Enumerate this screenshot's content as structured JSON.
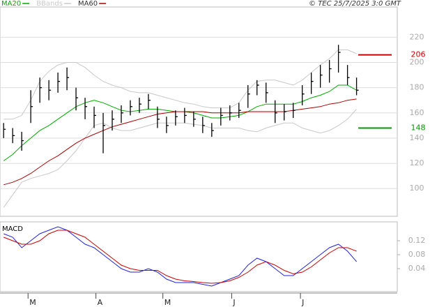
{
  "chart_data": [
    {
      "type": "ohlc",
      "header": "© TEC 25/7/2025 3:0 GMT",
      "high": [
        152,
        148,
        145,
        178,
        188,
        186,
        192,
        196,
        180,
        172,
        165,
        160,
        162,
        166,
        170,
        172,
        175,
        165,
        157,
        162,
        164,
        161,
        157,
        152,
        164,
        166,
        168,
        182,
        186,
        184,
        170,
        167,
        168,
        182,
        192,
        198,
        202,
        214,
        198,
        188
      ],
      "low": [
        140,
        136,
        130,
        152,
        168,
        170,
        176,
        178,
        162,
        155,
        148,
        128,
        146,
        152,
        158,
        160,
        163,
        148,
        144,
        150,
        152,
        149,
        144,
        141,
        150,
        154,
        156,
        164,
        174,
        168,
        152,
        154,
        156,
        166,
        175,
        180,
        184,
        192,
        182,
        174
      ],
      "close": [
        147,
        142,
        138,
        165,
        180,
        178,
        185,
        188,
        172,
        165,
        158,
        150,
        155,
        160,
        165,
        167,
        170,
        155,
        150,
        157,
        158,
        155,
        150,
        146,
        158,
        160,
        162,
        175,
        182,
        176,
        160,
        161,
        162,
        175,
        185,
        190,
        195,
        208,
        188,
        178
      ],
      "series": [
        {
          "name": "MA20",
          "color": "#00aa00",
          "values": [
            122,
            127,
            134,
            140,
            146,
            150,
            155,
            160,
            165,
            168,
            170,
            168,
            165,
            162,
            161,
            162,
            163,
            163,
            162,
            161,
            161,
            160,
            158,
            156,
            156,
            157,
            158,
            161,
            165,
            167,
            167,
            167,
            167,
            169,
            172,
            174,
            177,
            182,
            182,
            178
          ]
        },
        {
          "name": "BBands",
          "color": "#c8c8c8",
          "upper": [
            155,
            155,
            158,
            170,
            185,
            193,
            198,
            200,
            200,
            196,
            190,
            185,
            182,
            180,
            177,
            176,
            176,
            174,
            172,
            170,
            168,
            167,
            165,
            164,
            164,
            164,
            168,
            178,
            185,
            186,
            186,
            184,
            182,
            186,
            192,
            198,
            203,
            210,
            210,
            207
          ],
          "lower": [
            85,
            95,
            105,
            108,
            110,
            112,
            115,
            122,
            130,
            140,
            150,
            152,
            148,
            146,
            146,
            148,
            150,
            152,
            152,
            152,
            152,
            151,
            150,
            148,
            148,
            148,
            148,
            146,
            145,
            148,
            150,
            152,
            152,
            148,
            146,
            144,
            146,
            150,
            155,
            163
          ]
        },
        {
          "name": "MA60",
          "color": "#aa0000",
          "values": [
            103,
            105,
            108,
            112,
            117,
            122,
            126,
            131,
            136,
            140,
            143,
            146,
            149,
            151,
            153,
            155,
            157,
            159,
            160,
            161,
            161,
            161,
            161,
            160,
            160,
            160,
            160,
            161,
            161,
            161,
            161,
            161,
            162,
            163,
            164,
            165,
            167,
            168,
            170,
            171
          ]
        }
      ],
      "levels": [
        {
          "value": 206,
          "color": "#cc0000"
        },
        {
          "value": 148,
          "color": "#009900"
        }
      ],
      "xlim": [
        -0.4,
        43.5
      ],
      "ylim": [
        78,
        244
      ],
      "yticks": [
        100,
        120,
        140,
        160,
        180,
        200,
        220
      ],
      "grid": true
    },
    {
      "type": "line",
      "title": "MACD",
      "series": [
        {
          "color": "#2222dd",
          "values": [
            0.14,
            0.13,
            0.1,
            0.12,
            0.14,
            0.15,
            0.16,
            0.15,
            0.13,
            0.11,
            0.1,
            0.08,
            0.06,
            0.04,
            0.03,
            0.03,
            0.04,
            0.03,
            0.01,
            0.0,
            0.0,
            0.0,
            -0.005,
            -0.01,
            0.0,
            0.01,
            0.02,
            0.05,
            0.07,
            0.06,
            0.04,
            0.02,
            0.02,
            0.04,
            0.06,
            0.08,
            0.1,
            0.11,
            0.09,
            0.06
          ]
        },
        {
          "color": "#cc0000",
          "values": [
            0.13,
            0.12,
            0.11,
            0.11,
            0.12,
            0.14,
            0.15,
            0.15,
            0.14,
            0.13,
            0.11,
            0.09,
            0.07,
            0.05,
            0.04,
            0.035,
            0.035,
            0.035,
            0.02,
            0.01,
            0.005,
            0.003,
            0.0,
            -0.002,
            0.0,
            0.005,
            0.015,
            0.03,
            0.05,
            0.06,
            0.05,
            0.035,
            0.025,
            0.03,
            0.045,
            0.065,
            0.085,
            0.1,
            0.1,
            0.09
          ]
        }
      ],
      "xlim": [
        -0.4,
        43.5
      ],
      "xticks": [
        {
          "value": 2.7,
          "label": "M"
        },
        {
          "value": 10.2,
          "label": "A"
        },
        {
          "value": 17.6,
          "label": "M"
        },
        {
          "value": 25.2,
          "label": "J"
        },
        {
          "value": 32.8,
          "label": "J"
        }
      ],
      "ylim": [
        -0.026,
        0.174
      ],
      "yticks": [
        0.04,
        0.08,
        0.12
      ],
      "grid": false
    }
  ]
}
